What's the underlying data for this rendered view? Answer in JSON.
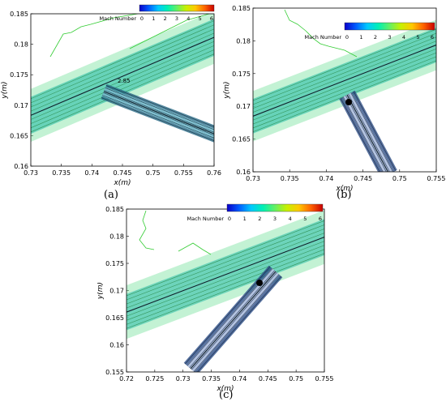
{
  "colorbar": {
    "label": "Mach Number",
    "ticks": [
      "0",
      "1",
      "2",
      "3",
      "4",
      "5",
      "6"
    ],
    "colors": [
      "#0a00c8",
      "#005cff",
      "#00c8ff",
      "#00f0b4",
      "#64f064",
      "#c8f000",
      "#ffc800",
      "#ff6400",
      "#c80000"
    ]
  },
  "colors": {
    "flow_teal": "#48c8b0",
    "flow_green": "#7be3a0",
    "channel_dark": "#1e3a5a",
    "contour_line": "#2c8c4c",
    "outline_green": "#33cc33"
  },
  "panels": [
    {
      "id": "a",
      "caption": "(a)",
      "xlabel": "x(m)",
      "ylabel": "y(m)",
      "xticks": [
        "0.73",
        "0.735",
        "0.74",
        "0.745",
        "0.75",
        "0.755",
        "0.76"
      ],
      "yticks": [
        "0.185",
        "0.18",
        "0.175",
        "0.17",
        "0.165",
        "0.16"
      ],
      "annotations": [
        "2.85"
      ]
    },
    {
      "id": "b",
      "caption": "(b)",
      "xlabel": "x(m)",
      "ylabel": "y(m)",
      "xticks": [
        "0.73",
        "0.735",
        "0.74",
        "0.745",
        "0.75",
        "0.755"
      ],
      "yticks": [
        "0.185",
        "0.18",
        "0.175",
        "0.17",
        "0.165",
        "0.16"
      ],
      "annotations": []
    },
    {
      "id": "c",
      "caption": "(c)",
      "xlabel": "x(m)",
      "ylabel": "y(m)",
      "xticks": [
        "0.72",
        "0.725",
        "0.73",
        "0.735",
        "0.74",
        "0.745",
        "0.75",
        "0.755"
      ],
      "yticks": [
        "0.185",
        "0.18",
        "0.175",
        "0.17",
        "0.165",
        "0.16",
        "0.155"
      ],
      "annotations": []
    }
  ]
}
